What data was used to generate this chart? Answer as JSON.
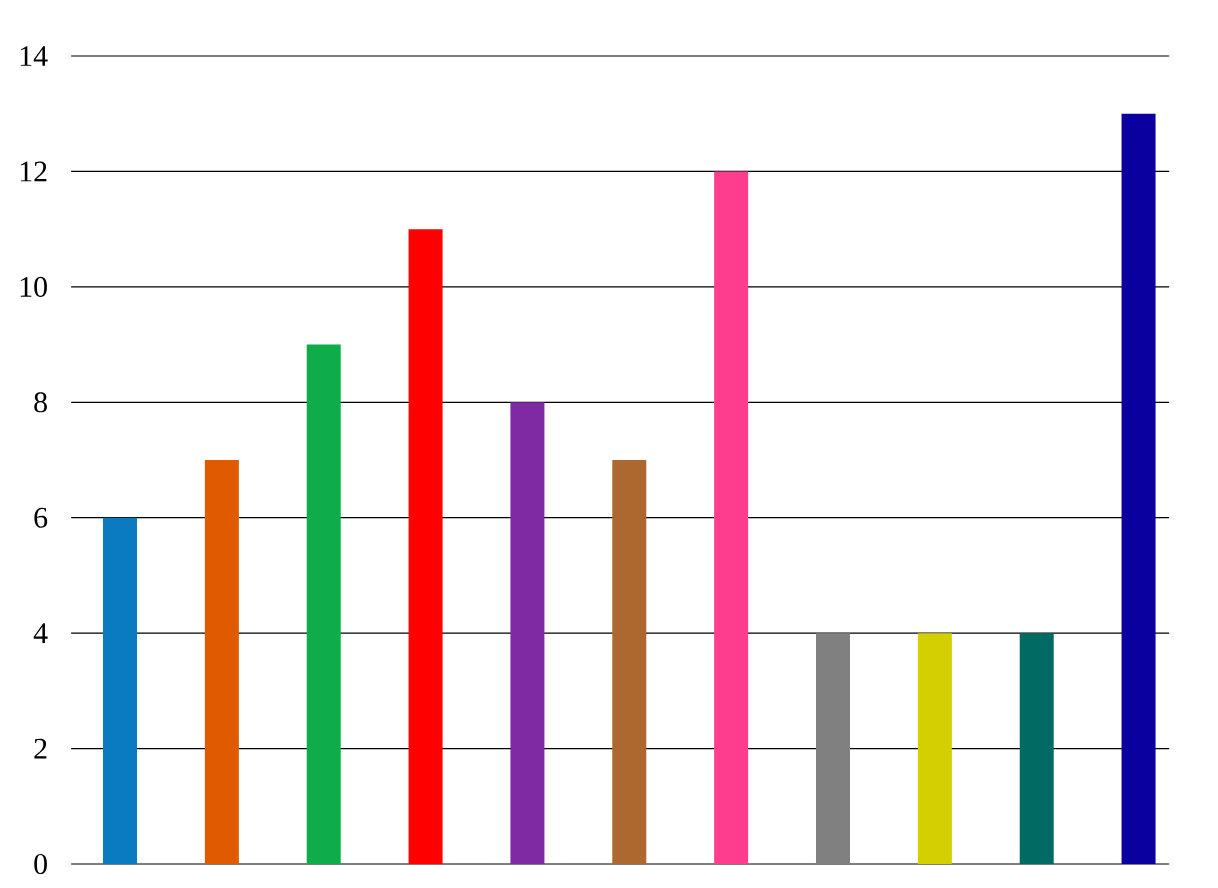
{
  "chart_data": {
    "type": "bar",
    "categories": [
      null,
      null,
      null,
      null,
      null,
      null,
      null,
      null,
      null,
      null,
      null
    ],
    "values": [
      6,
      7,
      9,
      11,
      8,
      7,
      12,
      4,
      4,
      4,
      13
    ],
    "colors": [
      "#0a7bc1",
      "#e05a00",
      "#0fad4a",
      "#ff0000",
      "#7f2aa3",
      "#ad6830",
      "#ff3d8f",
      "#808080",
      "#d4cf00",
      "#006a63",
      "#0a00a0"
    ],
    "ylim": [
      0,
      14
    ],
    "yticks": [
      0,
      2,
      4,
      6,
      8,
      10,
      12,
      14
    ],
    "grid": "y",
    "tick_labels": "y"
  }
}
